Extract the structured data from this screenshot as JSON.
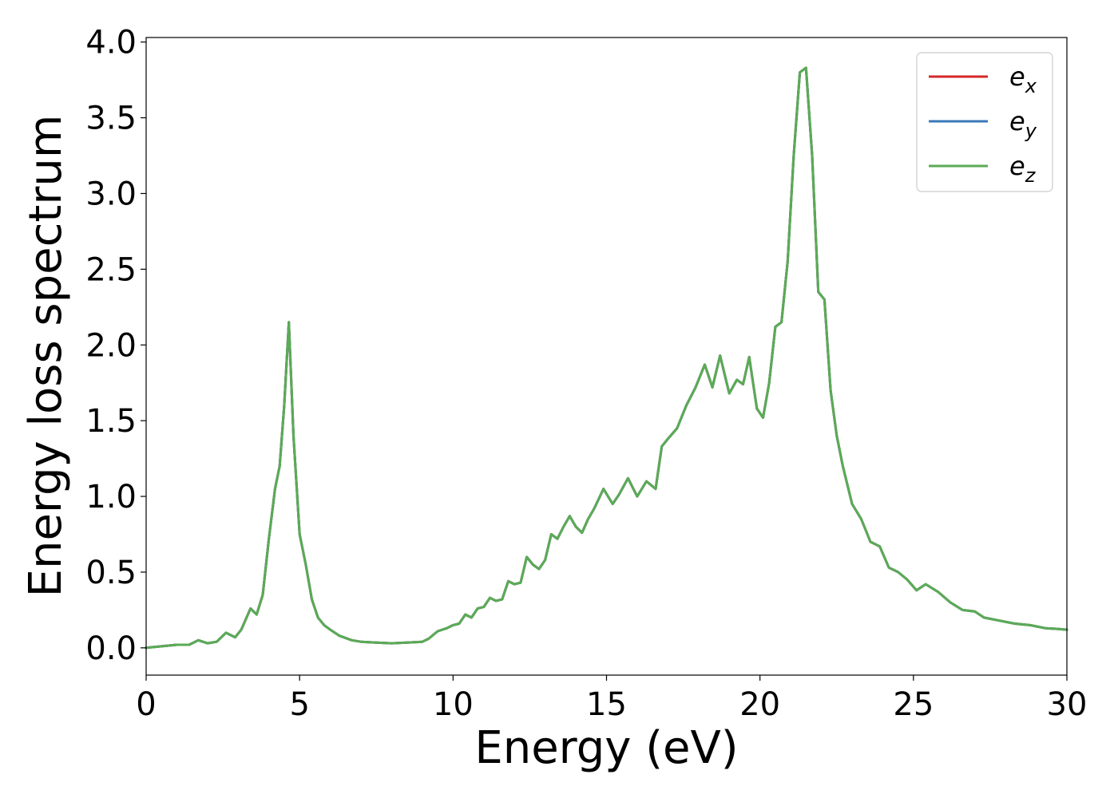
{
  "chart_data": {
    "type": "line",
    "title": "",
    "xlabel": "Energy (eV)",
    "ylabel": "Energy loss spectrum",
    "xlim": [
      0,
      30
    ],
    "ylim": [
      -0.18,
      4.03
    ],
    "xticks": [
      0,
      5,
      10,
      15,
      20,
      25,
      30
    ],
    "yticks": [
      0.0,
      0.5,
      1.0,
      1.5,
      2.0,
      2.5,
      3.0,
      3.5,
      4.0
    ],
    "xtick_labels": [
      "0",
      "5",
      "10",
      "15",
      "20",
      "25",
      "30"
    ],
    "ytick_labels": [
      "0.0",
      "0.5",
      "1.0",
      "1.5",
      "2.0",
      "2.5",
      "3.0",
      "3.5",
      "4.0"
    ],
    "grid": false,
    "legend_position": "top-right",
    "x": [
      0,
      0.5,
      1.0,
      1.4,
      1.7,
      2.0,
      2.3,
      2.6,
      2.9,
      3.1,
      3.4,
      3.6,
      3.8,
      4.0,
      4.2,
      4.35,
      4.5,
      4.65,
      4.8,
      5.0,
      5.2,
      5.4,
      5.6,
      5.8,
      6.0,
      6.3,
      6.7,
      7.0,
      7.5,
      8.0,
      8.5,
      9.0,
      9.2,
      9.5,
      9.8,
      10.0,
      10.2,
      10.4,
      10.6,
      10.8,
      11.0,
      11.2,
      11.4,
      11.6,
      11.8,
      12.0,
      12.2,
      12.4,
      12.6,
      12.8,
      13.0,
      13.2,
      13.4,
      13.6,
      13.8,
      14.0,
      14.2,
      14.4,
      14.6,
      14.9,
      15.2,
      15.4,
      15.7,
      16.0,
      16.3,
      16.6,
      16.8,
      17.0,
      17.3,
      17.6,
      17.9,
      18.2,
      18.45,
      18.7,
      19.0,
      19.25,
      19.45,
      19.65,
      19.9,
      20.1,
      20.3,
      20.5,
      20.7,
      20.9,
      21.1,
      21.3,
      21.5,
      21.7,
      21.9,
      22.1,
      22.3,
      22.5,
      22.7,
      23.0,
      23.3,
      23.6,
      23.9,
      24.2,
      24.5,
      24.8,
      25.1,
      25.4,
      25.8,
      26.2,
      26.6,
      27.0,
      27.3,
      27.8,
      28.3,
      28.8,
      29.3,
      29.7,
      30.0
    ],
    "series": [
      {
        "name": "e_x",
        "color": "#d62728",
        "values": [
          0.0,
          0.01,
          0.02,
          0.02,
          0.05,
          0.03,
          0.04,
          0.1,
          0.07,
          0.12,
          0.26,
          0.22,
          0.35,
          0.72,
          1.05,
          1.2,
          1.6,
          2.15,
          1.4,
          0.75,
          0.55,
          0.32,
          0.2,
          0.15,
          0.12,
          0.08,
          0.05,
          0.04,
          0.035,
          0.03,
          0.035,
          0.04,
          0.06,
          0.11,
          0.13,
          0.15,
          0.16,
          0.22,
          0.2,
          0.26,
          0.27,
          0.33,
          0.31,
          0.32,
          0.44,
          0.42,
          0.43,
          0.6,
          0.55,
          0.52,
          0.58,
          0.75,
          0.72,
          0.8,
          0.87,
          0.8,
          0.76,
          0.85,
          0.92,
          1.05,
          0.95,
          1.01,
          1.12,
          1.0,
          1.1,
          1.05,
          1.33,
          1.38,
          1.45,
          1.6,
          1.72,
          1.87,
          1.72,
          1.93,
          1.68,
          1.77,
          1.74,
          1.92,
          1.58,
          1.52,
          1.75,
          2.12,
          2.15,
          2.55,
          3.25,
          3.8,
          3.83,
          3.25,
          2.35,
          2.3,
          1.7,
          1.4,
          1.2,
          0.95,
          0.85,
          0.7,
          0.67,
          0.53,
          0.5,
          0.45,
          0.38,
          0.42,
          0.37,
          0.3,
          0.25,
          0.24,
          0.2,
          0.18,
          0.16,
          0.15,
          0.13,
          0.125,
          0.12
        ]
      },
      {
        "name": "e_y",
        "color": "#3a78b8",
        "values": [
          0.0,
          0.01,
          0.02,
          0.02,
          0.05,
          0.03,
          0.04,
          0.1,
          0.07,
          0.12,
          0.26,
          0.22,
          0.35,
          0.72,
          1.05,
          1.2,
          1.6,
          2.15,
          1.4,
          0.75,
          0.55,
          0.32,
          0.2,
          0.15,
          0.12,
          0.08,
          0.05,
          0.04,
          0.035,
          0.03,
          0.035,
          0.04,
          0.06,
          0.11,
          0.13,
          0.15,
          0.16,
          0.22,
          0.2,
          0.26,
          0.27,
          0.33,
          0.31,
          0.32,
          0.44,
          0.42,
          0.43,
          0.6,
          0.55,
          0.52,
          0.58,
          0.75,
          0.72,
          0.8,
          0.87,
          0.8,
          0.76,
          0.85,
          0.92,
          1.05,
          0.95,
          1.01,
          1.12,
          1.0,
          1.1,
          1.05,
          1.33,
          1.38,
          1.45,
          1.6,
          1.72,
          1.87,
          1.72,
          1.93,
          1.68,
          1.77,
          1.74,
          1.92,
          1.58,
          1.52,
          1.75,
          2.12,
          2.15,
          2.55,
          3.25,
          3.8,
          3.83,
          3.25,
          2.35,
          2.3,
          1.7,
          1.4,
          1.2,
          0.95,
          0.85,
          0.7,
          0.67,
          0.53,
          0.5,
          0.45,
          0.38,
          0.42,
          0.37,
          0.3,
          0.25,
          0.24,
          0.2,
          0.18,
          0.16,
          0.15,
          0.13,
          0.125,
          0.12
        ]
      },
      {
        "name": "e_z",
        "color": "#5aab55",
        "values": [
          0.0,
          0.01,
          0.02,
          0.02,
          0.05,
          0.03,
          0.04,
          0.1,
          0.07,
          0.12,
          0.26,
          0.22,
          0.35,
          0.72,
          1.05,
          1.2,
          1.6,
          2.15,
          1.4,
          0.75,
          0.55,
          0.32,
          0.2,
          0.15,
          0.12,
          0.08,
          0.05,
          0.04,
          0.035,
          0.03,
          0.035,
          0.04,
          0.06,
          0.11,
          0.13,
          0.15,
          0.16,
          0.22,
          0.2,
          0.26,
          0.27,
          0.33,
          0.31,
          0.32,
          0.44,
          0.42,
          0.43,
          0.6,
          0.55,
          0.52,
          0.58,
          0.75,
          0.72,
          0.8,
          0.87,
          0.8,
          0.76,
          0.85,
          0.92,
          1.05,
          0.95,
          1.01,
          1.12,
          1.0,
          1.1,
          1.05,
          1.33,
          1.38,
          1.45,
          1.6,
          1.72,
          1.87,
          1.72,
          1.93,
          1.68,
          1.77,
          1.74,
          1.92,
          1.58,
          1.52,
          1.75,
          2.12,
          2.15,
          2.55,
          3.25,
          3.8,
          3.83,
          3.25,
          2.35,
          2.3,
          1.7,
          1.4,
          1.2,
          0.95,
          0.85,
          0.7,
          0.67,
          0.53,
          0.5,
          0.45,
          0.38,
          0.42,
          0.37,
          0.3,
          0.25,
          0.24,
          0.2,
          0.18,
          0.16,
          0.15,
          0.13,
          0.125,
          0.12
        ]
      }
    ],
    "legend": [
      {
        "base": "e",
        "sub": "x",
        "color": "#d62728"
      },
      {
        "base": "e",
        "sub": "y",
        "color": "#3a78b8"
      },
      {
        "base": "e",
        "sub": "z",
        "color": "#5aab55"
      }
    ]
  }
}
